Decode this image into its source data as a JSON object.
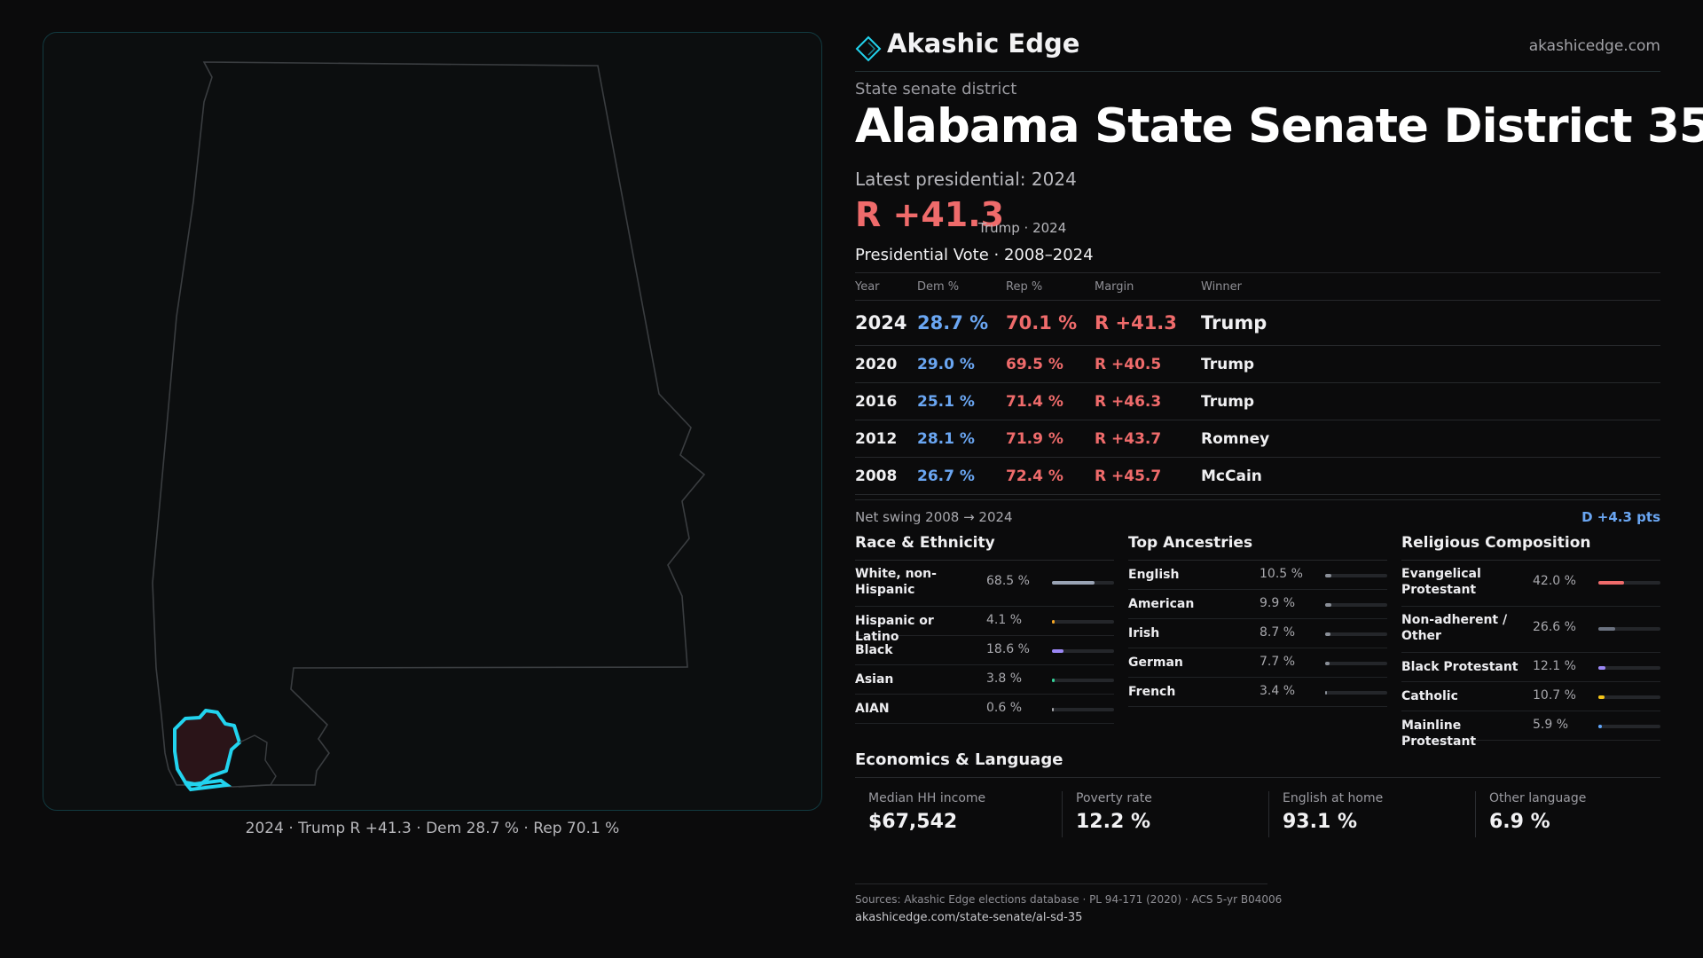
{
  "brand": {
    "name": "Akashic Edge",
    "url": "akashicedge.com"
  },
  "kicker": "State senate district",
  "title": "Alabama State Senate District 35",
  "latest_label": "Latest presidential: 2024",
  "headline": {
    "margin": "R +41.3",
    "sub": "Trump · 2024"
  },
  "map": {
    "caption": "2024 · Trump R +41.3 · Dem 28.7 % · Rep 70.1 %",
    "state_outline_color": "#3a3d40",
    "district_color": "#22d3ee",
    "district_fill": "#2a1418"
  },
  "presidential": {
    "title": "Presidential Vote · 2008–2024",
    "headers": {
      "year": "Year",
      "dem": "Dem %",
      "rep": "Rep %",
      "margin": "Margin",
      "winner": "Winner"
    },
    "rows": [
      {
        "year": "2024",
        "dem": "28.7 %",
        "rep": "70.1 %",
        "margin": "R +41.3",
        "winner": "Trump"
      },
      {
        "year": "2020",
        "dem": "29.0 %",
        "rep": "69.5 %",
        "margin": "R +40.5",
        "winner": "Trump"
      },
      {
        "year": "2016",
        "dem": "25.1 %",
        "rep": "71.4 %",
        "margin": "R +46.3",
        "winner": "Trump"
      },
      {
        "year": "2012",
        "dem": "28.1 %",
        "rep": "71.9 %",
        "margin": "R +43.7",
        "winner": "Romney"
      },
      {
        "year": "2008",
        "dem": "26.7 %",
        "rep": "72.4 %",
        "margin": "R +45.7",
        "winner": "McCain"
      }
    ],
    "swing_label": "Net swing 2008 → 2024",
    "swing_value": "D +4.3 pts"
  },
  "race": {
    "title": "Race & Ethnicity",
    "items": [
      {
        "label": "White, non-Hispanic",
        "value": "68.5 %",
        "pct": 68.5,
        "color": "#9aa4b5"
      },
      {
        "label": "Hispanic or Latino",
        "value": "4.1 %",
        "pct": 4.1,
        "color": "#f5a524"
      },
      {
        "label": "Black",
        "value": "18.6 %",
        "pct": 18.6,
        "color": "#9b87f5"
      },
      {
        "label": "Asian",
        "value": "3.8 %",
        "pct": 3.8,
        "color": "#34d399"
      },
      {
        "label": "AIAN",
        "value": "0.6 %",
        "pct": 0.6,
        "color": "#a8a8ad"
      }
    ]
  },
  "ancestry": {
    "title": "Top Ancestries",
    "items": [
      {
        "label": "English",
        "value": "10.5 %",
        "pct": 10.5,
        "color": "#8a8f98"
      },
      {
        "label": "American",
        "value": "9.9 %",
        "pct": 9.9,
        "color": "#8a8f98"
      },
      {
        "label": "Irish",
        "value": "8.7 %",
        "pct": 8.7,
        "color": "#8a8f98"
      },
      {
        "label": "German",
        "value": "7.7 %",
        "pct": 7.7,
        "color": "#8a8f98"
      },
      {
        "label": "French",
        "value": "3.4 %",
        "pct": 3.4,
        "color": "#8a8f98"
      }
    ]
  },
  "religion": {
    "title": "Religious Composition",
    "items": [
      {
        "label": "Evangelical Protestant",
        "value": "42.0 %",
        "pct": 42.0,
        "color": "#ef6b6b"
      },
      {
        "label": "Non-adherent / Other",
        "value": "26.6 %",
        "pct": 26.6,
        "color": "#6b7280"
      },
      {
        "label": "Black Protestant",
        "value": "12.1 %",
        "pct": 12.1,
        "color": "#9b87f5"
      },
      {
        "label": "Catholic",
        "value": "10.7 %",
        "pct": 10.7,
        "color": "#f5c518"
      },
      {
        "label": "Mainline Protestant",
        "value": "5.9 %",
        "pct": 5.9,
        "color": "#60a5fa"
      }
    ]
  },
  "economics": {
    "title": "Economics & Language",
    "cells": [
      {
        "label": "Median HH income",
        "value": "$67,542"
      },
      {
        "label": "Poverty rate",
        "value": "12.2 %"
      },
      {
        "label": "English at home",
        "value": "93.1 %"
      },
      {
        "label": "Other language",
        "value": "6.9 %"
      }
    ]
  },
  "sources": {
    "line": "Sources: Akashic Edge elections database · PL 94-171 (2020) · ACS 5-yr B04006",
    "url": "akashicedge.com/state-senate/al-sd-35"
  }
}
